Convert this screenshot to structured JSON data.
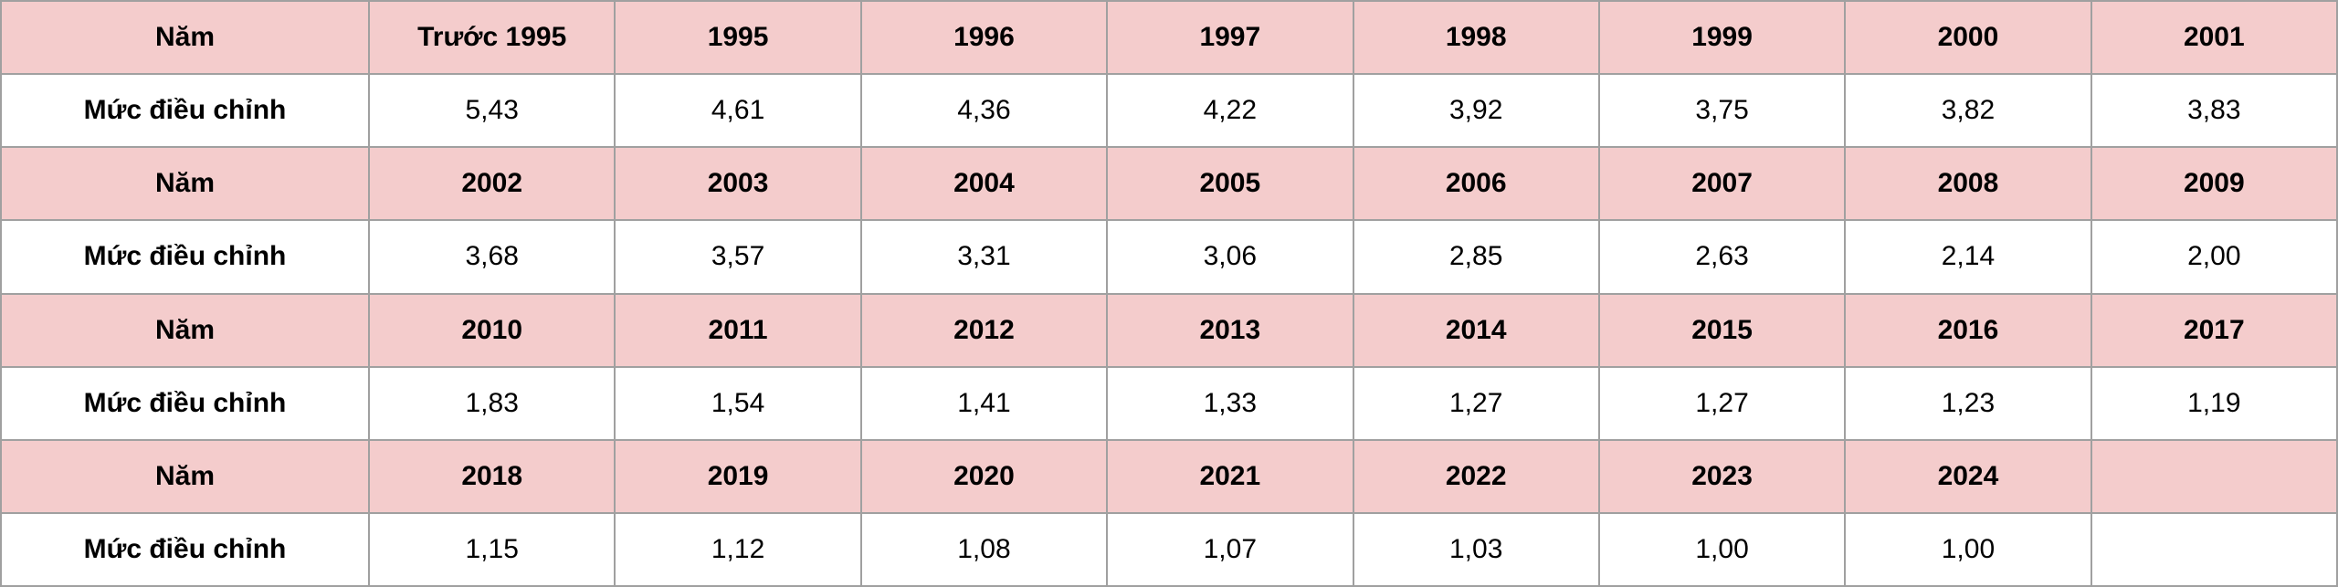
{
  "table": {
    "rows": [
      [
        "Năm",
        "Trước 1995",
        "1995",
        "1996",
        "1997",
        "1998",
        "1999",
        "2000",
        "2001"
      ],
      [
        "Mức điều chỉnh",
        "5,43",
        "4,61",
        "4,36",
        "4,22",
        "3,92",
        "3,75",
        "3,82",
        "3,83"
      ],
      [
        "Năm",
        "2002",
        "2003",
        "2004",
        "2005",
        "2006",
        "2007",
        "2008",
        "2009"
      ],
      [
        "Mức điều chỉnh",
        "3,68",
        "3,57",
        "3,31",
        "3,06",
        "2,85",
        "2,63",
        "2,14",
        "2,00"
      ],
      [
        "Năm",
        "2010",
        "2011",
        "2012",
        "2013",
        "2014",
        "2015",
        "2016",
        "2017"
      ],
      [
        "Mức điều chỉnh",
        "1,83",
        "1,54",
        "1,41",
        "1,33",
        "1,27",
        "1,27",
        "1,23",
        "1,19"
      ],
      [
        "Năm",
        "2018",
        "2019",
        "2020",
        "2021",
        "2022",
        "2023",
        "2024"
      ],
      [
        "Mức điều chỉnh",
        "1,15",
        "1,12",
        "1,08",
        "1,07",
        "1,03",
        "1,00",
        "1,00"
      ]
    ]
  }
}
